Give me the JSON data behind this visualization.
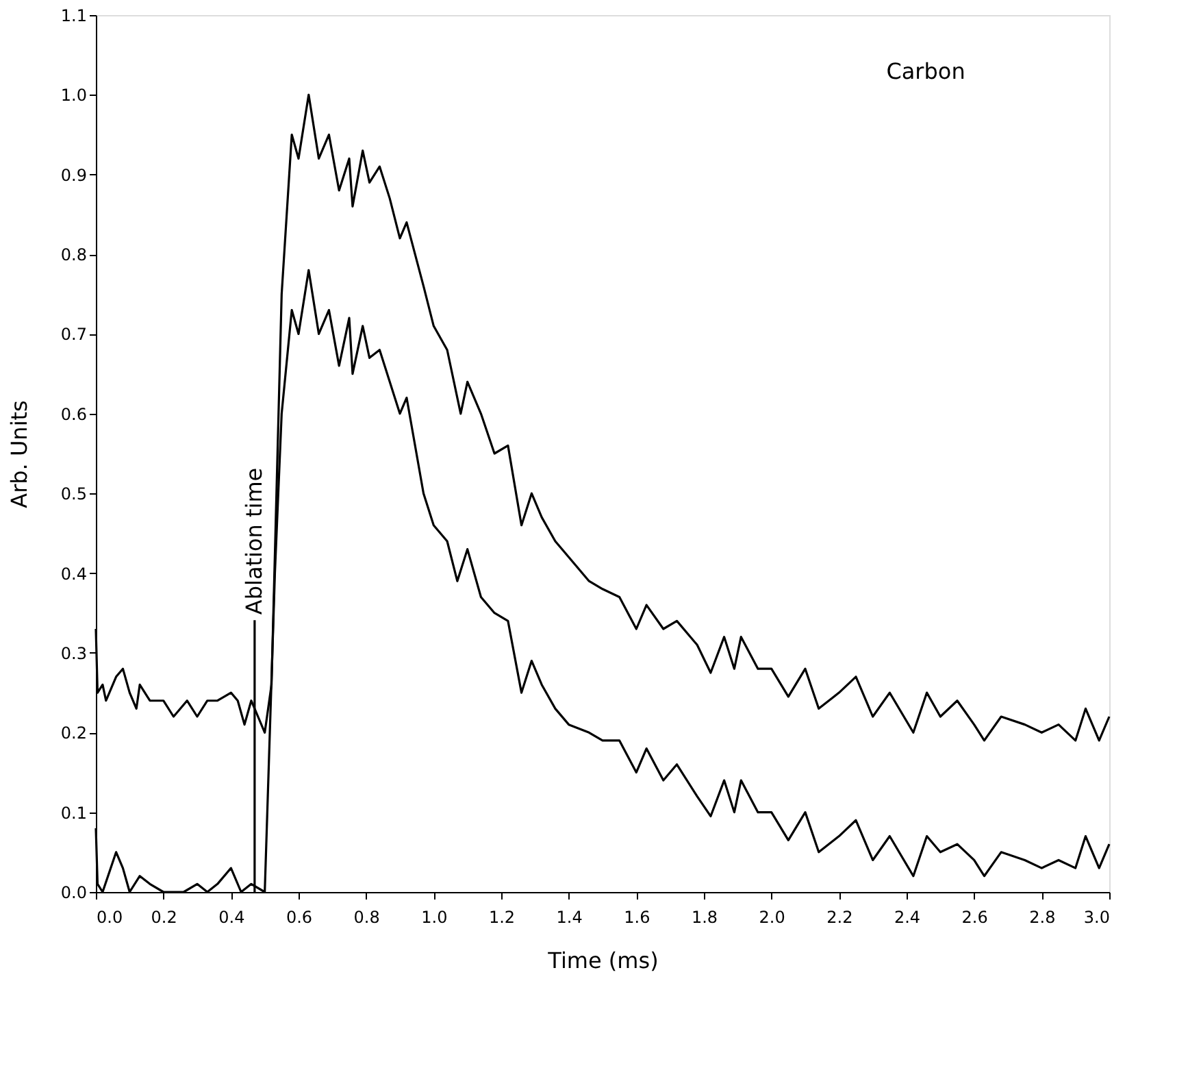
{
  "chart_data": {
    "type": "line",
    "xlabel": "Time (ms)",
    "ylabel": "Arb. Units",
    "annotations": [
      "Carbon"
    ],
    "ref_lines": [
      {
        "axis": "x",
        "value": 0.47,
        "label": "Ablation time",
        "color": "#000000"
      }
    ],
    "xlim": [
      0,
      3
    ],
    "ylim": [
      0,
      1.1
    ],
    "xticks": [
      {
        "value": 0,
        "label": "0.0"
      },
      0.2,
      0.4,
      0.6,
      0.8,
      {
        "value": 1,
        "label": "1.0"
      },
      1.2,
      1.4,
      1.6,
      1.8,
      {
        "value": 2,
        "label": "2.0"
      },
      2.2,
      2.4,
      2.6,
      2.8,
      {
        "value": 3,
        "label": "3.0"
      }
    ],
    "yticks": [
      {
        "value": 0,
        "label": "0.0"
      },
      0.1,
      0.2,
      0.3,
      0.4,
      0.5,
      0.6,
      0.7,
      0.8,
      0.9,
      {
        "value": 1,
        "label": "1.0"
      },
      1.1
    ],
    "grid": false,
    "marker": "none",
    "line_style": "solid",
    "series": [
      {
        "color": "#000000",
        "x": [
          0.0,
          0.005,
          0.02,
          0.03,
          0.06,
          0.08,
          0.1,
          0.12,
          0.13,
          0.16,
          0.2,
          0.23,
          0.27,
          0.3,
          0.33,
          0.36,
          0.4,
          0.42,
          0.44,
          0.46,
          0.48,
          0.5,
          0.52,
          0.55,
          0.58,
          0.6,
          0.63,
          0.66,
          0.69,
          0.72,
          0.75,
          0.76,
          0.79,
          0.81,
          0.84,
          0.87,
          0.9,
          0.92,
          0.97,
          1.0,
          1.04,
          1.08,
          1.1,
          1.14,
          1.18,
          1.22,
          1.26,
          1.29,
          1.32,
          1.36,
          1.4,
          1.46,
          1.5,
          1.55,
          1.6,
          1.63,
          1.68,
          1.72,
          1.78,
          1.82,
          1.86,
          1.89,
          1.91,
          1.96,
          2.0,
          2.05,
          2.1,
          2.14,
          2.2,
          2.25,
          2.3,
          2.35,
          2.42,
          2.46,
          2.5,
          2.55,
          2.6,
          2.63,
          2.68,
          2.75,
          2.8,
          2.85,
          2.9,
          2.93,
          2.97,
          3.0
        ],
        "values": [
          0.33,
          0.25,
          0.26,
          0.24,
          0.27,
          0.28,
          0.25,
          0.23,
          0.26,
          0.24,
          0.24,
          0.22,
          0.24,
          0.22,
          0.24,
          0.24,
          0.25,
          0.24,
          0.21,
          0.24,
          0.22,
          0.2,
          0.26,
          0.75,
          0.95,
          0.92,
          1.0,
          0.92,
          0.95,
          0.88,
          0.92,
          0.86,
          0.93,
          0.89,
          0.91,
          0.87,
          0.82,
          0.84,
          0.76,
          0.71,
          0.68,
          0.6,
          0.64,
          0.6,
          0.55,
          0.56,
          0.46,
          0.5,
          0.47,
          0.44,
          0.42,
          0.39,
          0.38,
          0.37,
          0.33,
          0.36,
          0.33,
          0.34,
          0.31,
          0.275,
          0.32,
          0.28,
          0.32,
          0.28,
          0.28,
          0.245,
          0.28,
          0.23,
          0.25,
          0.27,
          0.22,
          0.25,
          0.2,
          0.25,
          0.22,
          0.24,
          0.21,
          0.19,
          0.22,
          0.21,
          0.2,
          0.21,
          0.19,
          0.23,
          0.19,
          0.22
        ]
      },
      {
        "color": "#000000",
        "x": [
          0.0,
          0.005,
          0.02,
          0.06,
          0.08,
          0.1,
          0.13,
          0.16,
          0.2,
          0.26,
          0.3,
          0.33,
          0.36,
          0.4,
          0.43,
          0.46,
          0.5,
          0.53,
          0.55,
          0.58,
          0.6,
          0.63,
          0.66,
          0.69,
          0.72,
          0.75,
          0.76,
          0.79,
          0.81,
          0.84,
          0.87,
          0.9,
          0.92,
          0.97,
          1.0,
          1.04,
          1.07,
          1.1,
          1.14,
          1.18,
          1.22,
          1.26,
          1.29,
          1.32,
          1.36,
          1.4,
          1.46,
          1.5,
          1.55,
          1.6,
          1.63,
          1.68,
          1.72,
          1.78,
          1.82,
          1.86,
          1.89,
          1.91,
          1.96,
          2.0,
          2.05,
          2.1,
          2.14,
          2.2,
          2.25,
          2.3,
          2.35,
          2.42,
          2.46,
          2.5,
          2.55,
          2.6,
          2.63,
          2.68,
          2.75,
          2.8,
          2.85,
          2.9,
          2.93,
          2.97,
          3.0
        ],
        "values": [
          0.08,
          0.01,
          0.0,
          0.05,
          0.03,
          0.0,
          0.02,
          0.01,
          0.0,
          0.0,
          0.01,
          0.0,
          0.01,
          0.03,
          0.0,
          0.01,
          0.0,
          0.4,
          0.6,
          0.73,
          0.7,
          0.78,
          0.7,
          0.73,
          0.66,
          0.72,
          0.65,
          0.71,
          0.67,
          0.68,
          0.64,
          0.6,
          0.62,
          0.5,
          0.46,
          0.44,
          0.39,
          0.43,
          0.37,
          0.35,
          0.34,
          0.25,
          0.29,
          0.26,
          0.23,
          0.21,
          0.2,
          0.19,
          0.19,
          0.15,
          0.18,
          0.14,
          0.16,
          0.12,
          0.095,
          0.14,
          0.1,
          0.14,
          0.1,
          0.1,
          0.065,
          0.1,
          0.05,
          0.07,
          0.09,
          0.04,
          0.07,
          0.02,
          0.07,
          0.05,
          0.06,
          0.04,
          0.02,
          0.05,
          0.04,
          0.03,
          0.04,
          0.03,
          0.07,
          0.03,
          0.06
        ]
      }
    ]
  }
}
